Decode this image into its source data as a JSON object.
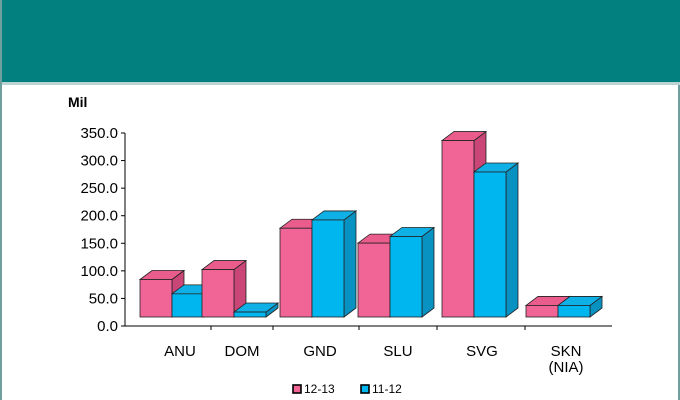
{
  "header": {
    "title": ""
  },
  "chart_data": {
    "type": "bar",
    "unit_label": "Mil",
    "categories": [
      [
        "ANU"
      ],
      [
        "DOM"
      ],
      [
        "GND"
      ],
      [
        "SLU"
      ],
      [
        "SVG"
      ],
      [
        "SKN",
        "(NIA)"
      ]
    ],
    "series": [
      {
        "name": "12-13",
        "values": [
          68,
          86,
          161,
          134,
          320,
          21
        ],
        "color": "#f06596",
        "side": "#c94676",
        "top": "#ea5c8c"
      },
      {
        "name": "11-12",
        "values": [
          42,
          9,
          176,
          146,
          263,
          21
        ],
        "color": "#00b6ef",
        "side": "#0892c2",
        "top": "#0fb0e6"
      }
    ],
    "yticks": [
      "0.0",
      "50.0",
      "100.0",
      "150.0",
      "200.0",
      "250.0",
      "300.0",
      "350.0"
    ],
    "ylim": [
      0,
      350
    ],
    "grid": false,
    "legend": "bottom",
    "three_d": true
  }
}
